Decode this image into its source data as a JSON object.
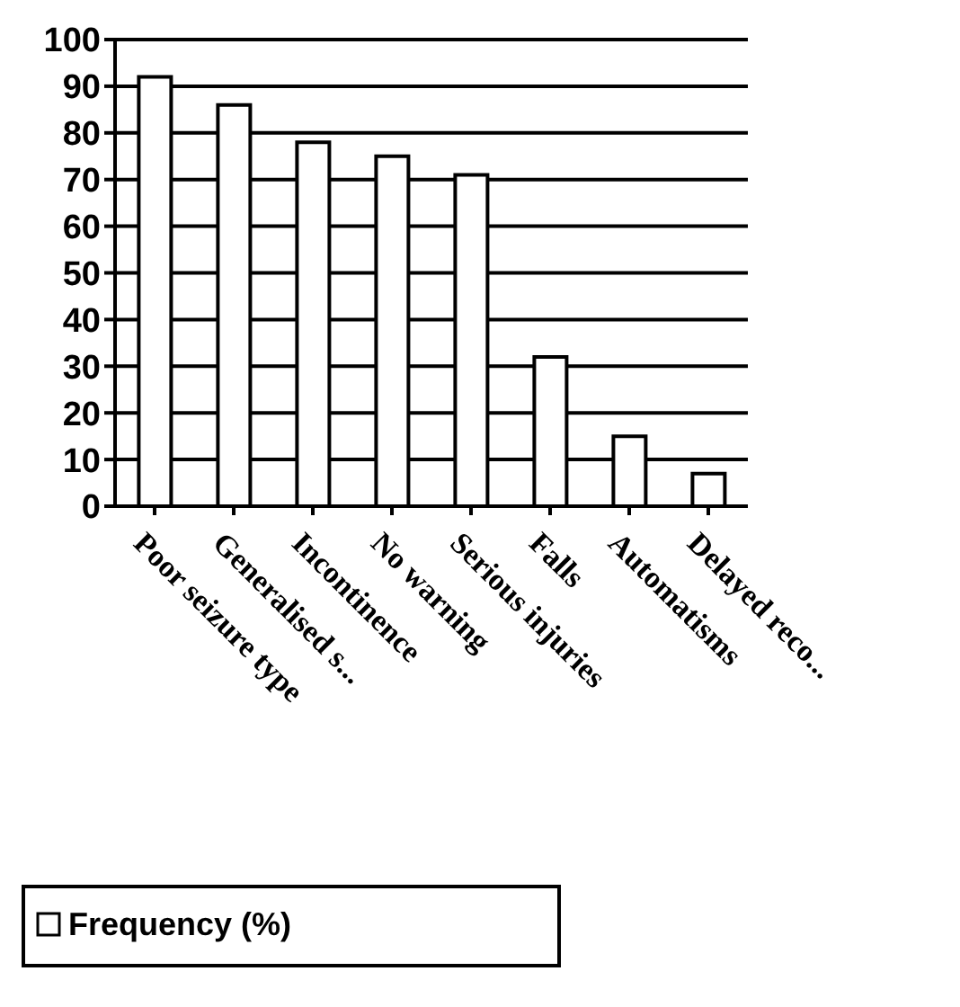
{
  "chart_data": {
    "type": "bar",
    "categories": [
      "Poor seizure type",
      "Generalised s...",
      "Incontinence",
      "No warning",
      "Serious injuries",
      "Falls",
      "Automatisms",
      "Delayed reco..."
    ],
    "series": [
      {
        "name": "Frequency (%)",
        "color": "#ffffff",
        "values": [
          92,
          86,
          78,
          75,
          71,
          32,
          15,
          7
        ]
      }
    ],
    "ylim": [
      0,
      100
    ],
    "yticks": [
      0,
      10,
      20,
      30,
      40,
      50,
      60,
      70,
      80,
      90,
      100
    ],
    "grid": "y",
    "legend": "bottom left"
  }
}
